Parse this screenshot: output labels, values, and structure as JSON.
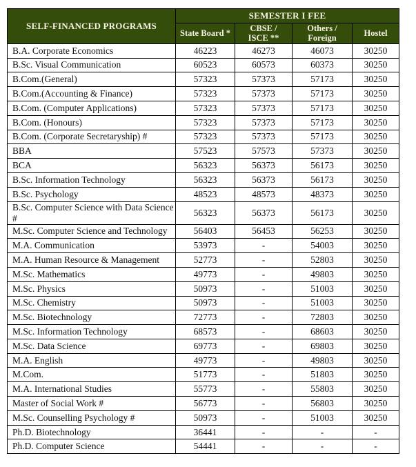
{
  "colors": {
    "header_bg": "#344d0a",
    "header_text": "#f5f1e3",
    "border": "#000000",
    "body_text": "#111111",
    "page_bg": "#ffffff"
  },
  "table": {
    "program_header": "SELF-FINANCED PROGRAMS",
    "fee_header": "SEMESTER I FEE",
    "columns": [
      "State Board *",
      "CBSE /\nISCE **",
      "Others /\nForeign",
      "Hostel"
    ],
    "rows": [
      {
        "program": "B.A. Corporate Economics",
        "values": [
          "46223",
          "46273",
          "46073",
          "30250"
        ]
      },
      {
        "program": "B.Sc. Visual Communication",
        "values": [
          "60523",
          "60573",
          "60373",
          "30250"
        ]
      },
      {
        "program": "B.Com.(General)",
        "values": [
          "57323",
          "57373",
          "57173",
          "30250"
        ]
      },
      {
        "program": "B.Com.(Accounting & Finance)",
        "values": [
          "57323",
          "57373",
          "57173",
          "30250"
        ]
      },
      {
        "program": "B.Com. (Computer Applications)",
        "values": [
          "57323",
          "57373",
          "57173",
          "30250"
        ]
      },
      {
        "program": "B.Com. (Honours)",
        "values": [
          "57323",
          "57373",
          "57173",
          "30250"
        ]
      },
      {
        "program": "B.Com. (Corporate Secretaryship) #",
        "values": [
          "57323",
          "57373",
          "57173",
          "30250"
        ]
      },
      {
        "program": "BBA",
        "values": [
          "57523",
          "57573",
          "57373",
          "30250"
        ]
      },
      {
        "program": "BCA",
        "values": [
          "56323",
          "56373",
          "56173",
          "30250"
        ]
      },
      {
        "program": "B.Sc. Information Technology",
        "values": [
          "56323",
          "56373",
          "56173",
          "30250"
        ]
      },
      {
        "program": "B.Sc. Psychology",
        "values": [
          "48523",
          "48573",
          "48373",
          "30250"
        ]
      },
      {
        "program": "B.Sc. Computer Science with Data Science #",
        "values": [
          "56323",
          "56373",
          "56173",
          "30250"
        ]
      },
      {
        "program": "M.Sc. Computer Science and Technology",
        "values": [
          "56403",
          "56453",
          "56253",
          "30250"
        ]
      },
      {
        "program": "M.A. Communication",
        "values": [
          "53973",
          "-",
          "54003",
          "30250"
        ]
      },
      {
        "program": "M.A. Human Resource & Management",
        "values": [
          "52773",
          "-",
          "52803",
          "30250"
        ]
      },
      {
        "program": "M.Sc. Mathematics",
        "values": [
          "49773",
          "-",
          "49803",
          "30250"
        ]
      },
      {
        "program": "M.Sc. Physics",
        "values": [
          "50973",
          "-",
          "51003",
          "30250"
        ]
      },
      {
        "program": "M.Sc. Chemistry",
        "values": [
          "50973",
          "-",
          "51003",
          "30250"
        ]
      },
      {
        "program": "M.Sc. Biotechnology",
        "values": [
          "72773",
          "-",
          "72803",
          "30250"
        ]
      },
      {
        "program": "M.Sc. Information Technology",
        "values": [
          "68573",
          "-",
          "68603",
          "30250"
        ]
      },
      {
        "program": "M.Sc. Data Science",
        "values": [
          "69773",
          "-",
          "69803",
          "30250"
        ]
      },
      {
        "program": "M.A. English",
        "values": [
          "49773",
          "-",
          "49803",
          "30250"
        ]
      },
      {
        "program": "M.Com.",
        "values": [
          "51773",
          "-",
          "51803",
          "30250"
        ]
      },
      {
        "program": "M.A. International Studies",
        "values": [
          "55773",
          "-",
          "55803",
          "30250"
        ]
      },
      {
        "program": "Master of Social Work #",
        "values": [
          "56773",
          "-",
          "56803",
          "30250"
        ]
      },
      {
        "program": "M.Sc. Counselling Psychology #",
        "values": [
          "50973",
          "-",
          "51003",
          "30250"
        ]
      },
      {
        "program": "Ph.D. Biotechnology",
        "values": [
          "36441",
          "-",
          "-",
          "-"
        ]
      },
      {
        "program": "Ph.D. Computer Science",
        "values": [
          "54441",
          "-",
          "-",
          "-"
        ]
      }
    ]
  }
}
